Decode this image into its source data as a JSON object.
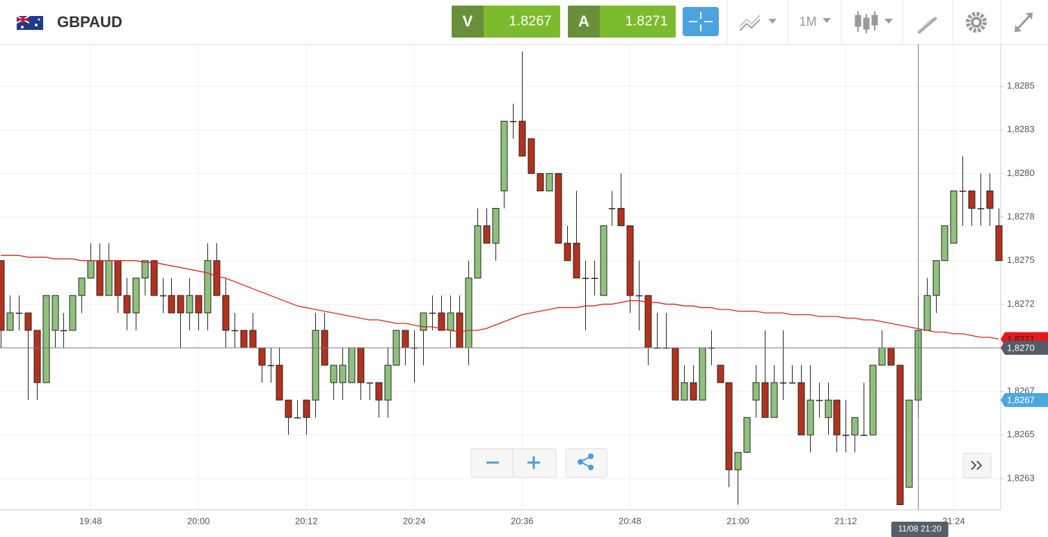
{
  "toolbar": {
    "symbol": "GBPAUD",
    "sell": {
      "label": "V",
      "price": "1.8267"
    },
    "buy": {
      "label": "A",
      "price": "1.8271"
    },
    "timeframe": "1M"
  },
  "chart_data": {
    "type": "candlestick",
    "up_color": "#8fc17c",
    "down_color": "#b3321d",
    "grid": true,
    "ylim": [
      1.82607,
      1.82874
    ],
    "yticks": [
      {
        "value": 1.8285,
        "label": "1,8285"
      },
      {
        "value": 1.82825,
        "label": "1,8283"
      },
      {
        "value": 1.828,
        "label": "1,8280"
      },
      {
        "value": 1.82775,
        "label": "1,8278"
      },
      {
        "value": 1.8275,
        "label": "1,8275"
      },
      {
        "value": 1.82725,
        "label": "1,8272"
      },
      {
        "value": 1.827,
        "label": "1,8270"
      },
      {
        "value": 1.82675,
        "label": "1,8267"
      },
      {
        "value": 1.8265,
        "label": "1,8265"
      },
      {
        "value": 1.82625,
        "label": "1,8263"
      }
    ],
    "categories": [
      null,
      null,
      null,
      null,
      null,
      null,
      null,
      null,
      null,
      null,
      "19:48",
      null,
      null,
      null,
      null,
      null,
      null,
      null,
      null,
      null,
      null,
      null,
      "20:00",
      null,
      null,
      null,
      null,
      null,
      null,
      null,
      null,
      null,
      null,
      null,
      "20:12",
      null,
      null,
      null,
      null,
      null,
      null,
      null,
      null,
      null,
      null,
      null,
      "20:24",
      null,
      null,
      null,
      null,
      null,
      null,
      null,
      null,
      null,
      null,
      null,
      "20:36",
      null,
      null,
      null,
      null,
      null,
      null,
      null,
      null,
      null,
      null,
      null,
      "20:48",
      null,
      null,
      null,
      null,
      null,
      null,
      null,
      null,
      null,
      null,
      null,
      "21:00",
      null,
      null,
      null,
      null,
      null,
      null,
      null,
      null,
      null,
      null,
      null,
      "21:12",
      null,
      null,
      null,
      null,
      null,
      null,
      null,
      null,
      null,
      null,
      null,
      "21:24",
      null,
      null,
      null,
      null,
      null
    ],
    "open": [
      1.8275,
      1.8271,
      1.8272,
      1.8272,
      1.8271,
      1.8268,
      1.8271,
      1.8271,
      1.8271,
      1.8273,
      1.8274,
      1.8275,
      1.8273,
      1.8275,
      1.8273,
      1.8272,
      1.8274,
      1.8275,
      1.8273,
      1.8273,
      1.8273,
      1.8272,
      1.8273,
      1.8272,
      1.8275,
      1.8273,
      1.8271,
      1.8271,
      1.8271,
      1.827,
      1.8269,
      1.8269,
      1.8267,
      1.8266,
      1.8267,
      1.8267,
      1.8271,
      1.8268,
      1.8268,
      1.8268,
      1.827,
      1.8268,
      1.8268,
      1.8267,
      1.8269,
      1.8271,
      1.827,
      1.8271,
      1.8272,
      1.8272,
      1.8271,
      1.8272,
      1.827,
      1.8274,
      1.8277,
      1.8276,
      1.8279,
      1.8283,
      1.8283,
      1.8282,
      1.828,
      1.8279,
      1.828,
      1.8276,
      1.8276,
      1.8274,
      1.8274,
      1.8273,
      1.8278,
      1.8278,
      1.8277,
      1.8273,
      1.8273,
      1.827,
      1.827,
      1.827,
      1.8267,
      1.8268,
      1.8267,
      1.827,
      1.8269,
      1.8268,
      1.8263,
      1.8264,
      1.8267,
      1.8268,
      1.8266,
      1.8268,
      1.8268,
      1.8268,
      1.8265,
      1.8267,
      1.8266,
      1.8267,
      1.8265,
      1.8265,
      1.8265,
      1.8265,
      1.8269,
      1.827,
      1.8269,
      1.8262,
      1.8267,
      1.8271,
      1.8273,
      1.8275,
      1.8276,
      1.8279,
      1.8279,
      1.8278,
      1.8279,
      1.8277
    ],
    "high": [
      1.8275,
      1.8273,
      1.8273,
      1.8272,
      1.8271,
      1.8273,
      1.8273,
      1.8272,
      1.8273,
      1.8274,
      1.8276,
      1.8276,
      1.8276,
      1.8275,
      1.8274,
      1.8274,
      1.8275,
      1.8275,
      1.8274,
      1.8274,
      1.8273,
      1.8274,
      1.8273,
      1.8276,
      1.8276,
      1.8274,
      1.8272,
      1.8271,
      1.8272,
      1.827,
      1.827,
      1.827,
      1.8267,
      1.8267,
      1.8267,
      1.8272,
      1.8272,
      1.8269,
      1.827,
      1.827,
      1.827,
      1.8268,
      1.8268,
      1.827,
      1.8271,
      1.8271,
      1.8271,
      1.8272,
      1.8273,
      1.8273,
      1.8273,
      1.8273,
      1.8275,
      1.8278,
      1.8278,
      1.8278,
      1.8283,
      1.8284,
      1.8287,
      1.8282,
      1.828,
      1.828,
      1.828,
      1.8277,
      1.8279,
      1.8275,
      1.8275,
      1.8277,
      1.8279,
      1.828,
      1.8277,
      1.8275,
      1.8273,
      1.8272,
      1.8272,
      1.827,
      1.8269,
      1.8269,
      1.827,
      1.8271,
      1.8269,
      1.8268,
      1.8264,
      1.8266,
      1.8269,
      1.8271,
      1.8269,
      1.8271,
      1.8269,
      1.8269,
      1.8269,
      1.8268,
      1.8268,
      1.8267,
      1.8267,
      1.8266,
      1.8268,
      1.8269,
      1.8271,
      1.827,
      1.8269,
      1.8267,
      1.8273,
      1.8274,
      1.8275,
      1.8277,
      1.8279,
      1.8281,
      1.8279,
      1.828,
      1.828,
      1.8278
    ],
    "low": [
      1.827,
      1.8271,
      1.8271,
      1.8267,
      1.8267,
      1.8268,
      1.827,
      1.827,
      1.8271,
      1.8272,
      1.8274,
      1.8273,
      1.8273,
      1.8272,
      1.8271,
      1.8271,
      1.8273,
      1.8273,
      1.8272,
      1.8272,
      1.827,
      1.8271,
      1.8271,
      1.8271,
      1.8273,
      1.827,
      1.827,
      1.827,
      1.827,
      1.8268,
      1.8268,
      1.8267,
      1.8265,
      1.8266,
      1.8265,
      1.8266,
      1.8269,
      1.8267,
      1.8267,
      1.8268,
      1.8267,
      1.8267,
      1.8266,
      1.8266,
      1.8269,
      1.8269,
      1.8268,
      1.8269,
      1.8271,
      1.8271,
      1.827,
      1.827,
      1.8269,
      1.8274,
      1.8276,
      1.8275,
      1.8278,
      1.8282,
      1.8281,
      1.828,
      1.8279,
      1.8279,
      1.8276,
      1.8275,
      1.8274,
      1.8271,
      1.8273,
      1.8273,
      1.8277,
      1.8277,
      1.8272,
      1.8271,
      1.8269,
      1.827,
      1.827,
      1.8267,
      1.8267,
      1.8267,
      1.8267,
      1.8269,
      1.8268,
      1.8262,
      1.8261,
      1.8264,
      1.8266,
      1.8266,
      1.8266,
      1.8267,
      1.8268,
      1.8265,
      1.8264,
      1.8266,
      1.8265,
      1.8264,
      1.8264,
      1.8264,
      1.8265,
      1.8265,
      1.8269,
      1.8269,
      1.8261,
      1.8262,
      1.8266,
      1.8271,
      1.8272,
      1.8275,
      1.8276,
      1.8277,
      1.8277,
      1.8277,
      1.8277,
      1.8275
    ],
    "close": [
      1.8271,
      1.8272,
      1.8272,
      1.8271,
      1.8268,
      1.8273,
      1.8273,
      1.8271,
      1.8273,
      1.8274,
      1.8275,
      1.8273,
      1.8275,
      1.8273,
      1.8272,
      1.8274,
      1.8275,
      1.8273,
      1.8273,
      1.8272,
      1.8272,
      1.8273,
      1.8272,
      1.8275,
      1.8273,
      1.8271,
      1.8271,
      1.827,
      1.827,
      1.8269,
      1.8269,
      1.8267,
      1.8266,
      1.8266,
      1.8266,
      1.8271,
      1.8269,
      1.8269,
      1.8269,
      1.827,
      1.8268,
      1.8268,
      1.8267,
      1.8269,
      1.8271,
      1.827,
      1.827,
      1.8272,
      1.8272,
      1.8271,
      1.8272,
      1.827,
      1.8274,
      1.8277,
      1.8276,
      1.8278,
      1.8283,
      1.8283,
      1.8281,
      1.828,
      1.8279,
      1.828,
      1.8276,
      1.8275,
      1.8274,
      1.8274,
      1.8274,
      1.8277,
      1.8278,
      1.8277,
      1.8273,
      1.8273,
      1.827,
      1.827,
      1.827,
      1.8267,
      1.8268,
      1.8267,
      1.827,
      1.827,
      1.8268,
      1.8263,
      1.8264,
      1.8266,
      1.8268,
      1.8266,
      1.8268,
      1.8268,
      1.8268,
      1.8265,
      1.8267,
      1.8267,
      1.8267,
      1.8265,
      1.8265,
      1.8266,
      1.8265,
      1.8269,
      1.827,
      1.8269,
      1.8261,
      1.8267,
      1.8271,
      1.8273,
      1.8275,
      1.8277,
      1.8279,
      1.8279,
      1.8278,
      1.8278,
      1.8278,
      1.8275
    ],
    "moving_average": {
      "color": "#d9231c",
      "values": [
        1.82753,
        1.82753,
        1.82753,
        1.82752,
        1.82752,
        1.82752,
        1.82751,
        1.82751,
        1.82751,
        1.8275,
        1.8275,
        1.8275,
        1.8275,
        1.8275,
        1.8275,
        1.8275,
        1.82749,
        1.82749,
        1.82748,
        1.82747,
        1.82746,
        1.82745,
        1.82744,
        1.82743,
        1.82741,
        1.8274,
        1.82738,
        1.82736,
        1.82734,
        1.82732,
        1.8273,
        1.82728,
        1.82726,
        1.82724,
        1.82723,
        1.82722,
        1.82721,
        1.8272,
        1.82719,
        1.82718,
        1.82717,
        1.82716,
        1.82716,
        1.82715,
        1.82714,
        1.82714,
        1.82713,
        1.82712,
        1.82712,
        1.82711,
        1.8271,
        1.82709,
        1.8271,
        1.8271,
        1.82711,
        1.82713,
        1.82715,
        1.82717,
        1.82719,
        1.8272,
        1.82721,
        1.82722,
        1.82723,
        1.82723,
        1.82723,
        1.82724,
        1.82724,
        1.82725,
        1.82725,
        1.82726,
        1.82727,
        1.82727,
        1.82726,
        1.82726,
        1.82725,
        1.82725,
        1.82724,
        1.82724,
        1.82723,
        1.82723,
        1.82722,
        1.82722,
        1.82721,
        1.82721,
        1.82721,
        1.8272,
        1.8272,
        1.8272,
        1.82719,
        1.82719,
        1.82719,
        1.82718,
        1.82718,
        1.82718,
        1.82717,
        1.82717,
        1.82716,
        1.82716,
        1.82715,
        1.82714,
        1.82713,
        1.82712,
        1.82711,
        1.8271,
        1.82709,
        1.82709,
        1.82708,
        1.82708,
        1.82707,
        1.82706,
        1.82706,
        1.82705
      ]
    },
    "price_tags": [
      {
        "value": 1.82705,
        "label": "1,8271",
        "color": "#e8171b"
      },
      {
        "value": 1.827,
        "label": "1,8270",
        "color": "#535c66"
      },
      {
        "value": 1.8267,
        "label": "1,8267",
        "color": "#4aa8de"
      }
    ],
    "crosshair": {
      "value": 1.827,
      "label": "11/08 21:20"
    }
  }
}
